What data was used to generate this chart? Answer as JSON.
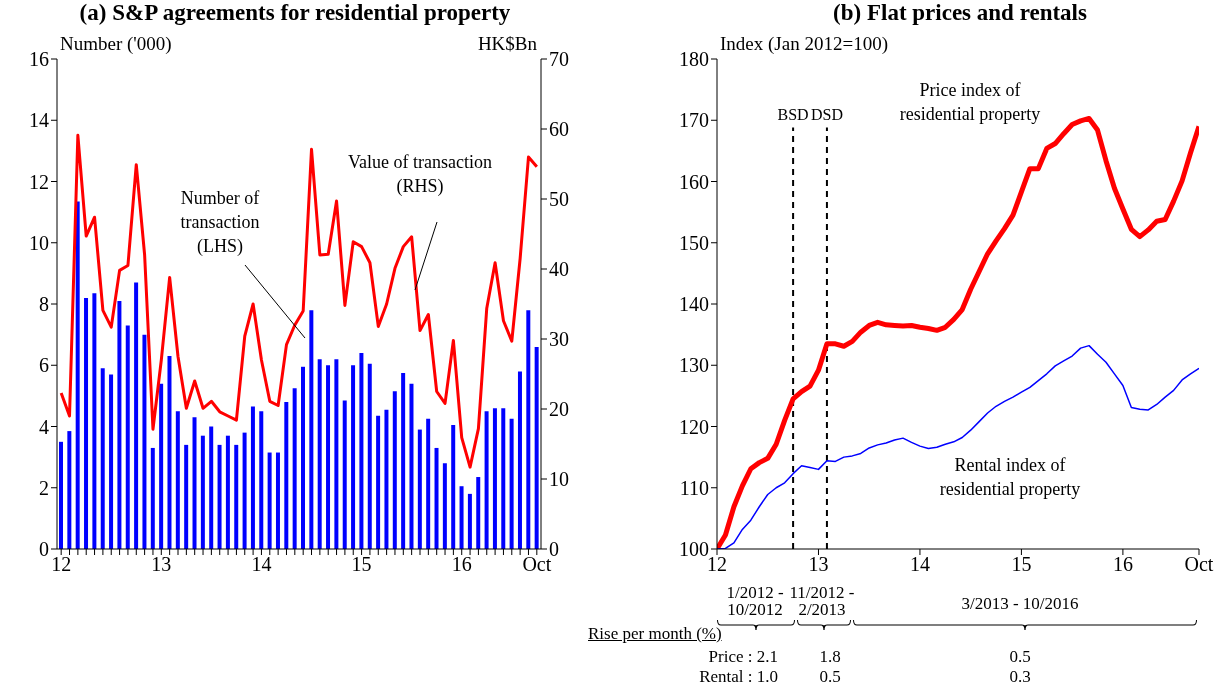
{
  "chart_data": [
    {
      "type": "bar",
      "title": "(a) S&P agreements for residential property",
      "ylabel": "Number ('000)",
      "y2label": "HK$Bn",
      "categories": [
        "12",
        null,
        null,
        null,
        null,
        null,
        null,
        null,
        null,
        null,
        null,
        null,
        "13",
        null,
        null,
        null,
        null,
        null,
        null,
        null,
        null,
        null,
        null,
        null,
        "14",
        null,
        null,
        null,
        null,
        null,
        null,
        null,
        null,
        null,
        null,
        null,
        "15",
        null,
        null,
        null,
        null,
        null,
        null,
        null,
        null,
        null,
        null,
        null,
        "16",
        null,
        null,
        null,
        null,
        null,
        null,
        null,
        null,
        "Oct"
      ],
      "series": [
        {
          "name": "Number of transaction (LHS)",
          "color": "#0000ff",
          "values": [
            3.5,
            3.85,
            11.35,
            8.2,
            8.35,
            5.9,
            5.7,
            8.1,
            7.3,
            8.7,
            7.0,
            3.3,
            5.4,
            6.3,
            4.5,
            3.4,
            4.3,
            3.7,
            4.0,
            3.4,
            3.7,
            3.4,
            3.8,
            4.65,
            4.5,
            3.15,
            3.15,
            4.8,
            5.25,
            5.95,
            7.8,
            6.2,
            6.0,
            6.2,
            4.85,
            6.0,
            6.4,
            6.05,
            4.35,
            4.55,
            5.15,
            5.75,
            5.4,
            3.9,
            4.25,
            3.3,
            2.8,
            4.05,
            2.05,
            1.8,
            2.35,
            4.5,
            4.6,
            4.6,
            4.25,
            5.8,
            7.8,
            6.6
          ]
        },
        {
          "name": "Value of transaction (RHS)",
          "type": "line",
          "axis": "y2",
          "color": "#ff0000",
          "values": [
            22.3,
            19.0,
            59.1,
            44.7,
            47.4,
            34.1,
            31.7,
            39.8,
            40.5,
            54.9,
            42.0,
            17.1,
            27.0,
            38.8,
            27.5,
            20.1,
            24.0,
            20.1,
            21.1,
            19.6,
            19.0,
            18.4,
            30.4,
            35.0,
            27.0,
            21.1,
            20.5,
            29.2,
            32.0,
            34.0,
            57.1,
            42.0,
            42.1,
            49.7,
            34.8,
            43.9,
            43.2,
            40.9,
            31.8,
            35.0,
            40.1,
            43.2,
            44.6,
            31.2,
            33.5,
            22.5,
            20.8,
            29.8,
            15.9,
            11.7,
            17.2,
            34.4,
            40.9,
            32.6,
            29.7,
            41.5,
            56.0,
            54.6
          ]
        }
      ],
      "ylim": [
        0,
        16
      ],
      "yticks": [
        0,
        2,
        4,
        6,
        8,
        10,
        12,
        14,
        16
      ],
      "y2lim": [
        0,
        70
      ],
      "y2ticks": [
        0,
        10,
        20,
        30,
        40,
        50,
        60,
        70
      ]
    },
    {
      "type": "line",
      "title": "(b) Flat prices and rentals",
      "ylabel": "Index (Jan 2012=100)",
      "x": [
        "2012-01",
        "2012-02",
        "2012-03",
        "2012-04",
        "2012-05",
        "2012-06",
        "2012-07",
        "2012-08",
        "2012-09",
        "2012-10",
        "2012-11",
        "2012-12",
        "2013-01",
        "2013-02",
        "2013-03",
        "2013-04",
        "2013-05",
        "2013-06",
        "2013-07",
        "2013-08",
        "2013-09",
        "2013-10",
        "2013-11",
        "2013-12",
        "2014-01",
        "2014-02",
        "2014-03",
        "2014-04",
        "2014-05",
        "2014-06",
        "2014-07",
        "2014-08",
        "2014-09",
        "2014-10",
        "2014-11",
        "2014-12",
        "2015-01",
        "2015-02",
        "2015-03",
        "2015-04",
        "2015-05",
        "2015-06",
        "2015-07",
        "2015-08",
        "2015-09",
        "2015-10",
        "2015-11",
        "2015-12",
        "2016-01",
        "2016-02",
        "2016-03",
        "2016-04",
        "2016-05",
        "2016-06",
        "2016-07",
        "2016-08",
        "2016-09",
        "2016-10"
      ],
      "series": [
        {
          "name": "Price index of residential property",
          "color": "#ff0000",
          "values": [
            100,
            102.3,
            106.9,
            110.3,
            113.1,
            114.1,
            114.8,
            117.1,
            121.0,
            124.5,
            125.7,
            126.6,
            129.2,
            133.5,
            133.5,
            133.1,
            133.9,
            135.4,
            136.5,
            137.0,
            136.6,
            136.5,
            136.4,
            136.5,
            136.2,
            136.0,
            135.7,
            136.2,
            137.5,
            139.1,
            142.4,
            145.3,
            148.2,
            150.3,
            152.3,
            154.5,
            158.3,
            162.1,
            162.1,
            165.4,
            166.2,
            167.8,
            169.3,
            169.9,
            170.3,
            168.4,
            163.4,
            158.9,
            155.5,
            152.2,
            151.0,
            152.1,
            153.5,
            153.8,
            156.8,
            160.1,
            164.7,
            169.0
          ]
        },
        {
          "name": "Rental index of residential property",
          "color": "#0000ff",
          "values": [
            100,
            100.1,
            101.0,
            103.2,
            104.7,
            106.9,
            108.9,
            110.0,
            110.8,
            112.3,
            113.6,
            113.3,
            113.0,
            114.4,
            114.3,
            115.0,
            115.2,
            115.6,
            116.5,
            117.0,
            117.3,
            117.8,
            118.1,
            117.4,
            116.8,
            116.4,
            116.6,
            117.1,
            117.5,
            118.2,
            119.4,
            120.8,
            122.2,
            123.3,
            124.1,
            124.8,
            125.6,
            126.4,
            127.5,
            128.6,
            129.9,
            130.7,
            131.5,
            132.8,
            133.2,
            131.8,
            130.5,
            128.6,
            126.7,
            123.1,
            122.8,
            122.7,
            123.6,
            124.8,
            125.9,
            127.6,
            128.6,
            129.5
          ]
        }
      ],
      "xlim": [
        "2012-01",
        "2016-10"
      ],
      "xticks": [
        {
          "value": "2012-01",
          "label": "12"
        },
        {
          "value": "2013-01",
          "label": "13"
        },
        {
          "value": "2014-01",
          "label": "14"
        },
        {
          "value": "2015-01",
          "label": "15"
        },
        {
          "value": "2016-01",
          "label": "16"
        },
        {
          "value": "2016-10",
          "label": "Oct"
        }
      ],
      "ylim": [
        100,
        180
      ],
      "yticks": [
        100,
        110,
        120,
        130,
        140,
        150,
        160,
        170,
        180
      ],
      "ref_lines": [
        {
          "axis": "x",
          "value": "2012-10",
          "label": "BSD",
          "color": "#000000",
          "line_style": "dashed"
        },
        {
          "axis": "x",
          "value": "2013-02",
          "label": "DSD",
          "color": "#000000",
          "line_style": "dashed"
        }
      ],
      "annotations": [
        "1/2012 - 10/2012",
        "11/2012 - 2/2013",
        "3/2013 - 10/2016",
        "Rise per month (%)",
        "Price : 2.1",
        "1.8",
        "0.5",
        "Rental : 1.0",
        "0.5",
        "0.3"
      ]
    }
  ]
}
